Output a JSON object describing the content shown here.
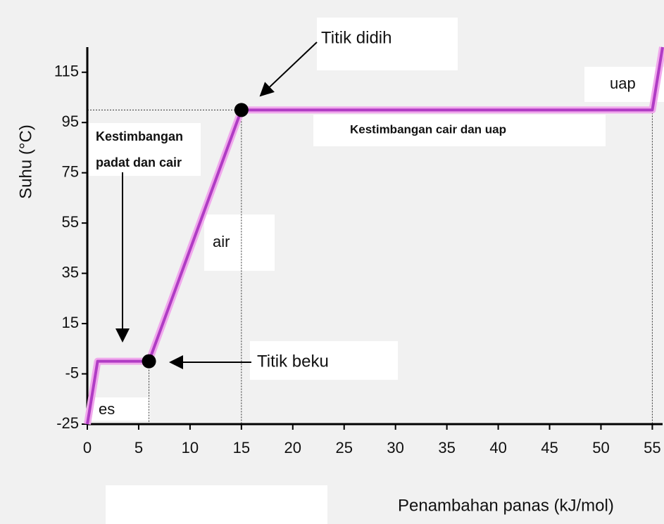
{
  "chart_data": {
    "type": "line",
    "x_label": "Penambahan panas (kJ/mol)",
    "y_label": "Suhu (°C)",
    "x": [
      0,
      1,
      6,
      15,
      55,
      56
    ],
    "series": [
      {
        "color": "#b03cc4",
        "values": [
          -25,
          0,
          0,
          100,
          100,
          125
        ]
      }
    ],
    "xlim": [
      0,
      56
    ],
    "xticks": [
      0,
      5,
      10,
      15,
      20,
      25,
      30,
      35,
      40,
      45,
      50,
      55
    ],
    "ylim": [
      -25,
      125
    ],
    "yticks": [
      -25,
      -5,
      15,
      35,
      55,
      75,
      95,
      115
    ],
    "grid": false,
    "annotations": [
      "Titik didih",
      "uap",
      "Kestimbangan cair dan uap",
      "Kestimbangan",
      "padat dan cair",
      "air",
      "Titik beku",
      "es"
    ]
  }
}
